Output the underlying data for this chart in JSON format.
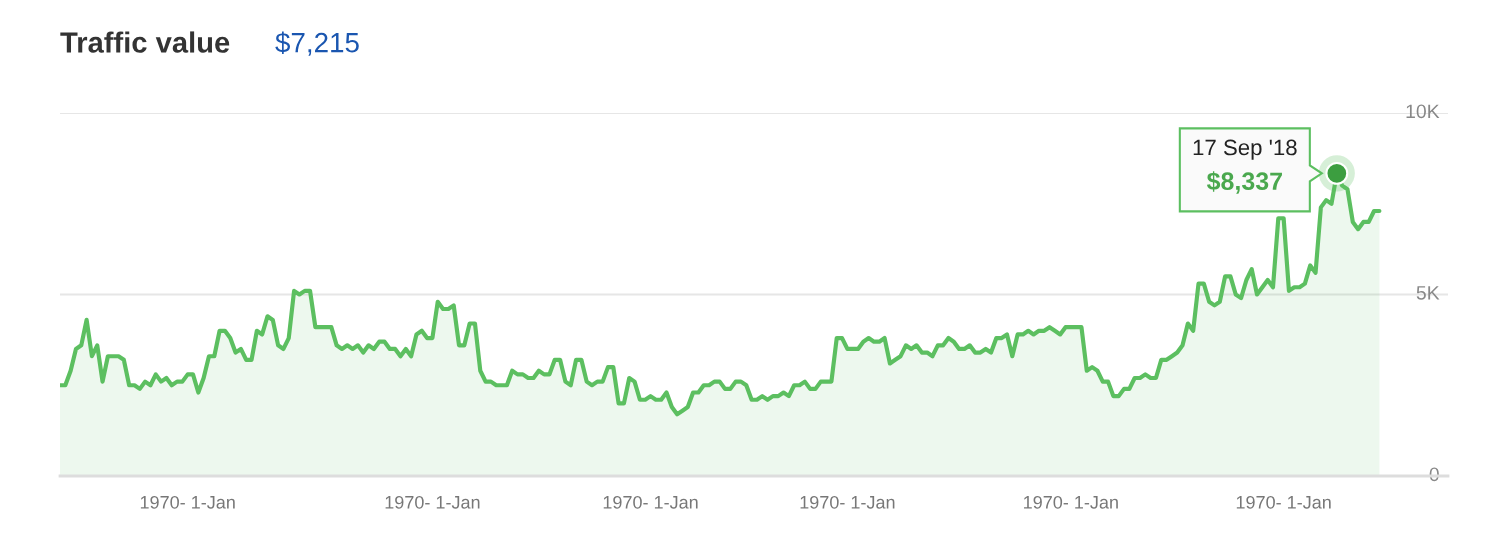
{
  "chart_data": {
    "type": "area",
    "title": "Traffic value",
    "subtitle": "$7,215",
    "categories": [
      null,
      null,
      null,
      null,
      null,
      null,
      null,
      null,
      null,
      null,
      null,
      null,
      null,
      null,
      null,
      null,
      null,
      null,
      null,
      null,
      null,
      null,
      null,
      null,
      "1970- 1-Jan",
      null,
      null,
      null,
      null,
      null,
      null,
      null,
      null,
      null,
      null,
      null,
      null,
      null,
      null,
      null,
      null,
      null,
      null,
      null,
      null,
      null,
      null,
      null,
      null,
      null,
      null,
      null,
      null,
      null,
      null,
      null,
      null,
      null,
      null,
      null,
      null,
      null,
      null,
      null,
      null,
      null,
      null,
      null,
      null,
      null,
      "1970- 1-Jan",
      null,
      null,
      null,
      null,
      null,
      null,
      null,
      null,
      null,
      null,
      null,
      null,
      null,
      null,
      null,
      null,
      null,
      null,
      null,
      null,
      null,
      null,
      null,
      null,
      null,
      null,
      null,
      null,
      null,
      null,
      null,
      null,
      null,
      null,
      null,
      null,
      null,
      null,
      null,
      null,
      "1970- 1-Jan",
      null,
      null,
      null,
      null,
      null,
      null,
      null,
      null,
      null,
      null,
      null,
      null,
      null,
      null,
      null,
      null,
      null,
      null,
      null,
      null,
      null,
      null,
      null,
      null,
      null,
      null,
      null,
      null,
      null,
      null,
      null,
      null,
      null,
      null,
      null,
      null,
      "1970- 1-Jan",
      null,
      null,
      null,
      null,
      null,
      null,
      null,
      null,
      null,
      null,
      null,
      null,
      null,
      null,
      null,
      null,
      null,
      null,
      null,
      null,
      null,
      null,
      null,
      null,
      null,
      null,
      null,
      null,
      null,
      null,
      null,
      null,
      null,
      null,
      null,
      null,
      null,
      null,
      null,
      null,
      null,
      "1970- 1-Jan",
      null,
      null,
      null,
      null,
      null,
      null,
      null,
      null,
      null,
      null,
      null,
      null,
      null,
      null,
      null,
      null,
      null,
      null,
      null,
      null,
      null,
      null,
      null,
      null,
      null,
      null,
      null,
      null,
      null,
      null,
      null,
      null,
      null,
      null,
      null,
      null,
      null,
      null,
      null,
      "1970- 1-Jan",
      null,
      null,
      null,
      null,
      null,
      null,
      null,
      null,
      null,
      null,
      null,
      null,
      null,
      null,
      null,
      null,
      null,
      null
    ],
    "series": [
      {
        "color": "#5cbf60",
        "values": [
          2500,
          2500,
          2900,
          3500,
          3600,
          4300,
          3300,
          3600,
          2600,
          3300,
          3300,
          3300,
          3200,
          2500,
          2500,
          2400,
          2600,
          2500,
          2800,
          2600,
          2700,
          2500,
          2600,
          2600,
          2800,
          2800,
          2300,
          2700,
          3300,
          3300,
          4000,
          4000,
          3800,
          3400,
          3500,
          3200,
          3200,
          4000,
          3900,
          4400,
          4300,
          3600,
          3500,
          3800,
          5100,
          5000,
          5100,
          5100,
          4100,
          4100,
          4100,
          4100,
          3600,
          3500,
          3600,
          3500,
          3600,
          3400,
          3600,
          3500,
          3700,
          3700,
          3500,
          3500,
          3300,
          3500,
          3300,
          3900,
          4000,
          3800,
          3800,
          4800,
          4600,
          4600,
          4700,
          3600,
          3600,
          4200,
          4200,
          2900,
          2600,
          2600,
          2500,
          2500,
          2500,
          2900,
          2800,
          2800,
          2700,
          2700,
          2900,
          2800,
          2800,
          3200,
          3200,
          2600,
          2500,
          3200,
          3200,
          2600,
          2500,
          2600,
          2600,
          3000,
          3000,
          2000,
          2000,
          2700,
          2600,
          2100,
          2100,
          2200,
          2100,
          2100,
          2300,
          1900,
          1700,
          1800,
          1900,
          2300,
          2300,
          2500,
          2500,
          2600,
          2600,
          2400,
          2400,
          2600,
          2600,
          2500,
          2100,
          2100,
          2200,
          2100,
          2200,
          2200,
          2300,
          2200,
          2500,
          2500,
          2600,
          2400,
          2400,
          2600,
          2600,
          2600,
          3800,
          3800,
          3500,
          3500,
          3500,
          3700,
          3800,
          3700,
          3700,
          3800,
          3100,
          3200,
          3300,
          3600,
          3500,
          3600,
          3400,
          3400,
          3300,
          3600,
          3600,
          3800,
          3700,
          3500,
          3500,
          3600,
          3400,
          3400,
          3500,
          3400,
          3800,
          3800,
          3900,
          3300,
          3900,
          3900,
          4000,
          3900,
          4000,
          4000,
          4100,
          4000,
          3900,
          4100,
          4100,
          4100,
          4100,
          2900,
          3000,
          2900,
          2600,
          2600,
          2200,
          2200,
          2400,
          2400,
          2700,
          2700,
          2800,
          2700,
          2700,
          3200,
          3200,
          3300,
          3400,
          3600,
          4200,
          4000,
          5300,
          5300,
          4800,
          4700,
          4800,
          5500,
          5500,
          5000,
          4900,
          5400,
          5700,
          5000,
          5200,
          5400,
          5200,
          7100,
          7100,
          5100,
          5200,
          5200,
          5300,
          5800,
          5600,
          7400,
          7600,
          7500,
          8337,
          8000,
          7900,
          7000,
          6800,
          7000,
          7000,
          7300,
          7300
        ]
      }
    ],
    "ylim": [
      0,
      10000
    ],
    "yticks": [
      {
        "value": 0,
        "label": "0"
      },
      {
        "value": 5000,
        "label": "5K"
      },
      {
        "value": 10000,
        "label": "10K"
      }
    ],
    "grid": "y",
    "annotations": [
      "17 Sep '18",
      "$8,337"
    ]
  }
}
